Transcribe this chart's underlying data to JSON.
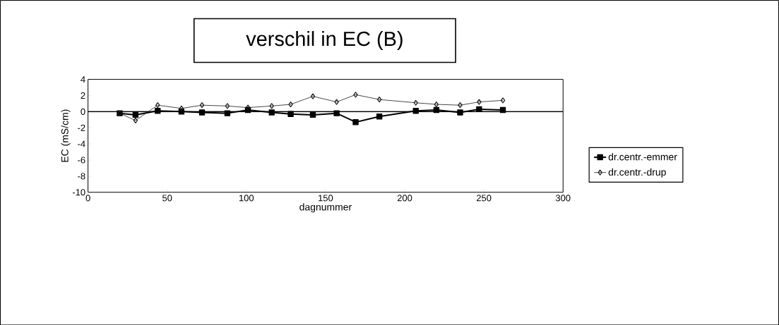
{
  "chart_data": {
    "type": "line",
    "title": "verschil in EC (B)",
    "xlabel": "dagnummer",
    "ylabel": "EC (mS/cm)",
    "x": [
      20,
      30,
      44,
      59,
      72,
      88,
      101,
      116,
      128,
      142,
      157,
      169,
      184,
      207,
      220,
      235,
      247,
      262
    ],
    "series": [
      {
        "name": "dr.centr.-emmer",
        "color": "#000000",
        "marker": "square",
        "values": [
          -0.2,
          -0.4,
          0.1,
          0,
          -0.1,
          -0.2,
          0.2,
          -0.1,
          -0.3,
          -0.4,
          -0.2,
          -1.3,
          -0.6,
          0.1,
          0.2,
          -0.1,
          0.3,
          0.2
        ]
      },
      {
        "name": "dr.centr.-drup",
        "color": "#1a1a1a",
        "marker": "diamond",
        "values": [
          -0.2,
          -1.1,
          0.8,
          0.4,
          0.8,
          0.7,
          0.5,
          0.7,
          0.9,
          1.9,
          1.2,
          2.1,
          1.5,
          1.1,
          0.9,
          0.8,
          1.2,
          1.4
        ]
      }
    ],
    "xlim": [
      0,
      300
    ],
    "xticks": [
      0,
      50,
      100,
      150,
      200,
      250,
      300
    ],
    "ylim": [
      -10,
      4
    ],
    "yticks": [
      -10,
      -8,
      -6,
      -4,
      -2,
      0,
      2,
      4
    ],
    "ref_lines": [
      {
        "axis": "y",
        "value": 0
      }
    ],
    "grid": false,
    "legend": "right",
    "line_style": "solid"
  }
}
